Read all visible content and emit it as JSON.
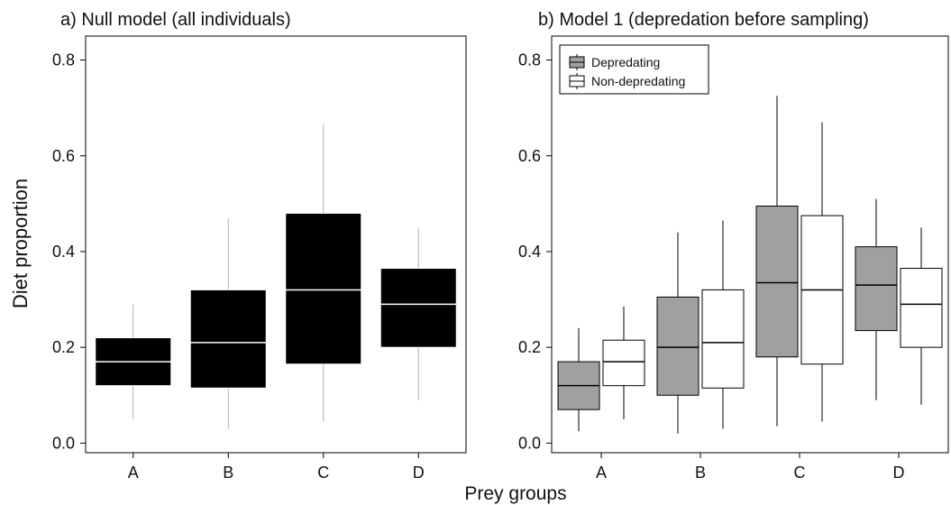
{
  "figure": {
    "ylabel": "Diet proportion",
    "xlabel": "Prey groups"
  },
  "chart_data": [
    {
      "type": "boxplot",
      "title": "a) Null model (all individuals)",
      "categories": [
        "A",
        "B",
        "C",
        "D"
      ],
      "ylim": [
        -0.02,
        0.85
      ],
      "yticks": [
        0.0,
        0.2,
        0.4,
        0.6,
        0.8
      ],
      "ytick_labels": [
        "0.0",
        "0.2",
        "0.4",
        "0.6",
        "0.8"
      ],
      "grid": false,
      "series": [
        {
          "fill": "#000000",
          "stroke": "#ffffff",
          "whisker_color": "#b0b0b0",
          "boxes": [
            {
              "category": "A",
              "min": 0.05,
              "q1": 0.12,
              "median": 0.17,
              "q3": 0.22,
              "max": 0.29
            },
            {
              "category": "B",
              "min": 0.03,
              "q1": 0.115,
              "median": 0.21,
              "q3": 0.32,
              "max": 0.47
            },
            {
              "category": "C",
              "min": 0.045,
              "q1": 0.165,
              "median": 0.32,
              "q3": 0.48,
              "max": 0.665
            },
            {
              "category": "D",
              "min": 0.09,
              "q1": 0.2,
              "median": 0.29,
              "q3": 0.365,
              "max": 0.45
            }
          ]
        }
      ]
    },
    {
      "type": "boxplot",
      "title": "b) Model 1 (depredation before sampling)",
      "categories": [
        "A",
        "B",
        "C",
        "D"
      ],
      "ylim": [
        -0.02,
        0.85
      ],
      "yticks": [
        0.0,
        0.2,
        0.4,
        0.6,
        0.8
      ],
      "ytick_labels": [
        "0.0",
        "0.2",
        "0.4",
        "0.6",
        "0.8"
      ],
      "grid": false,
      "legend_position": "top-left",
      "series": [
        {
          "name": "Depredating",
          "fill": "#a0a0a0",
          "stroke": "#000000",
          "whisker_color": "#000000",
          "boxes": [
            {
              "category": "A",
              "min": 0.025,
              "q1": 0.07,
              "median": 0.12,
              "q3": 0.17,
              "max": 0.24
            },
            {
              "category": "B",
              "min": 0.02,
              "q1": 0.1,
              "median": 0.2,
              "q3": 0.305,
              "max": 0.44
            },
            {
              "category": "C",
              "min": 0.035,
              "q1": 0.18,
              "median": 0.335,
              "q3": 0.495,
              "max": 0.725
            },
            {
              "category": "D",
              "min": 0.09,
              "q1": 0.235,
              "median": 0.33,
              "q3": 0.41,
              "max": 0.51
            }
          ]
        },
        {
          "name": "Non-depredating",
          "fill": "#ffffff",
          "stroke": "#000000",
          "whisker_color": "#000000",
          "boxes": [
            {
              "category": "A",
              "min": 0.05,
              "q1": 0.12,
              "median": 0.17,
              "q3": 0.215,
              "max": 0.285
            },
            {
              "category": "B",
              "min": 0.03,
              "q1": 0.115,
              "median": 0.21,
              "q3": 0.32,
              "max": 0.465
            },
            {
              "category": "C",
              "min": 0.045,
              "q1": 0.165,
              "median": 0.32,
              "q3": 0.475,
              "max": 0.67
            },
            {
              "category": "D",
              "min": 0.08,
              "q1": 0.2,
              "median": 0.29,
              "q3": 0.365,
              "max": 0.45
            }
          ]
        }
      ]
    }
  ]
}
